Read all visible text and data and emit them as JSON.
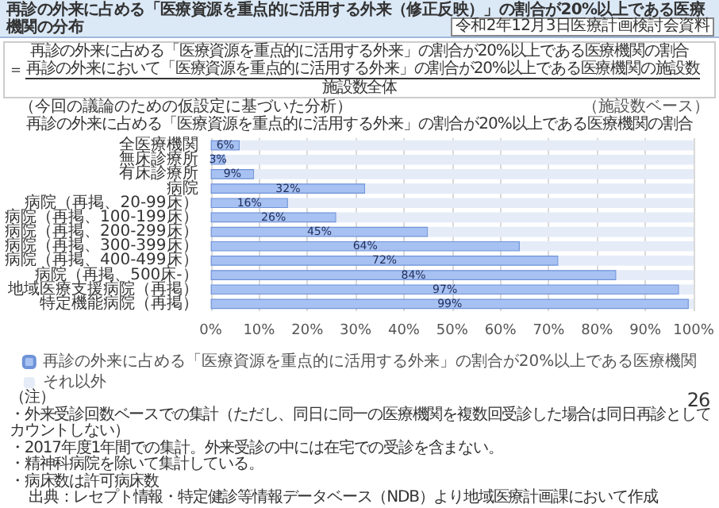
{
  "chart_data": {
    "type": "bar",
    "orientation": "horizontal",
    "stacked": true,
    "title": "再診の外来に占める「医療資源を重点的に活用する外来（修正反映）」の割合が20%以上である医療機関の分布",
    "subtitle": "再診の外来に占める「医療資源を重点的に活用する外来」の割合が20%以上である医療機関の割合",
    "categories": [
      "全医療機関",
      "無床診療所",
      "有床診療所",
      "病院",
      "病院（再掲、20-99床）",
      "病院（再掲、100-199床）",
      "病院（再掲、200-299床）",
      "病院（再掲、300-399床）",
      "病院（再掲、400-499床）",
      "病院（再掲、500床-）",
      "地域医療支援病院（再掲）",
      "特定機能病院（再掲）"
    ],
    "series": [
      {
        "name": "再診の外来に占める「医療資源を重点的に活用する外来」の割合が20%以上である医療機関",
        "color": "#a7c1f2",
        "values": [
          6,
          3,
          9,
          32,
          16,
          26,
          45,
          64,
          72,
          84,
          97,
          99
        ],
        "value_labels": [
          "6%",
          "3%",
          "9%",
          "32%",
          "16%",
          "26%",
          "45%",
          "64%",
          "72%",
          "84%",
          "97%",
          "99%"
        ]
      },
      {
        "name": "それ以外",
        "color": "#e5ecf8",
        "values": [
          94,
          97,
          91,
          68,
          84,
          74,
          55,
          36,
          28,
          16,
          3,
          1
        ]
      }
    ],
    "xlim": [
      0,
      100
    ],
    "xticks": [
      {
        "value": 0,
        "label": "0%"
      },
      {
        "value": 10,
        "label": "10%"
      },
      {
        "value": 20,
        "label": "20%"
      },
      {
        "value": 30,
        "label": "30%"
      },
      {
        "value": 40,
        "label": "40%"
      },
      {
        "value": 50,
        "label": "50%"
      },
      {
        "value": 60,
        "label": "60%"
      },
      {
        "value": 70,
        "label": "70%"
      },
      {
        "value": 80,
        "label": "80%"
      },
      {
        "value": 90,
        "label": "90%"
      },
      {
        "value": 100,
        "label": "100%"
      }
    ],
    "grid": "x",
    "legend": "bottom",
    "annotations": [
      "令和2年12月3日医療計画検討会資料",
      "再診の外来に占める「医療資源を重点的に活用する外来」の割合が20%以上である医療機関の割合",
      "＝",
      "再診の外来において「医療資源を重点的に活用する外来」の割合が20%以上である医療機関の施設数",
      "施設数全体",
      "（今回の議論のための仮設定に基づいた分析）",
      "（施設数ベース）",
      "（注）",
      "・外来受診回数ベースでの集計（ただし、同日に同一の医療機関を複数回受診した場合は同日再診としてカウントしない）",
      "・2017年度1年間での集計。外来受診の中には在宅での受診を含まない。",
      "・精神科病院を除いて集計している。",
      "・病床数は許可病床数",
      "出典：レセプト情報・特定健診等情報データベース（NDB）より地域医療計画課において作成",
      "26"
    ]
  }
}
